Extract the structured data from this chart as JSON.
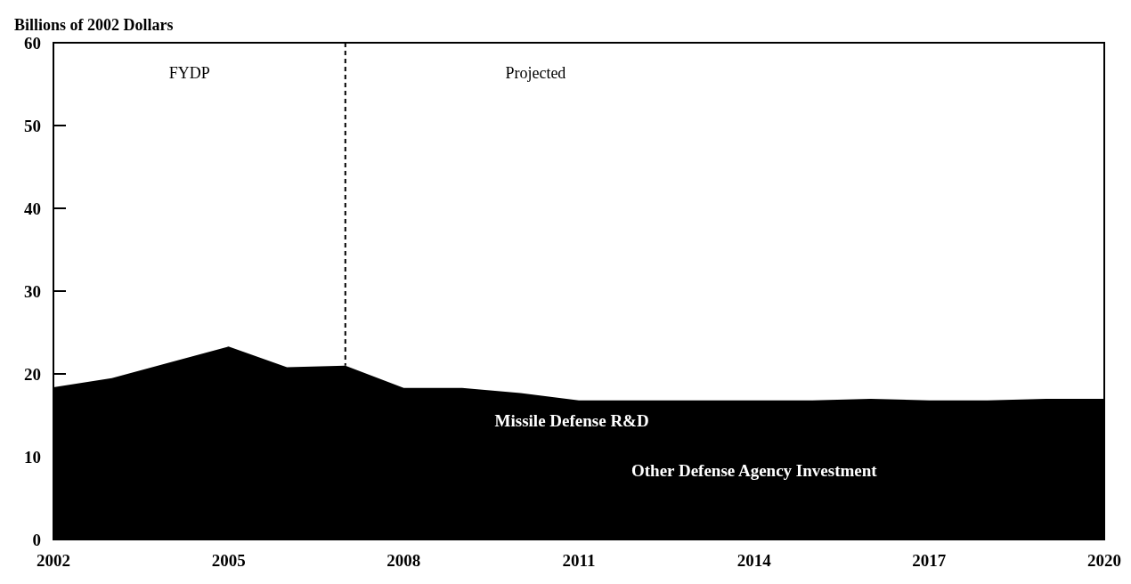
{
  "chart_data": {
    "type": "area",
    "ylabel": "Billions of 2002 Dollars",
    "x": [
      2002,
      2003,
      2004,
      2005,
      2006,
      2007,
      2008,
      2009,
      2010,
      2011,
      2012,
      2013,
      2014,
      2015,
      2016,
      2017,
      2018,
      2019,
      2020
    ],
    "series": [
      {
        "color": "#000000",
        "values": [
          18.4,
          19.5,
          21.4,
          23.3,
          20.8,
          21.0,
          18.3,
          18.3,
          17.7,
          16.8,
          16.8,
          16.8,
          16.8,
          16.8,
          17.0,
          16.8,
          16.8,
          17.0,
          17.0
        ]
      }
    ],
    "xlim": [
      2002,
      2020
    ],
    "xticks": [
      2002,
      2005,
      2008,
      2011,
      2014,
      2017,
      2020
    ],
    "ylim": [
      0,
      60
    ],
    "yticks": [
      0,
      10,
      20,
      30,
      40,
      50,
      60
    ],
    "ref_lines": [
      {
        "axis": "x",
        "value": 2007,
        "line_style": "dashed",
        "color": "#000000"
      }
    ],
    "annotations": [
      "FYDP",
      "Projected",
      "Missile Defense R&D",
      "Other Defense Agency Investment"
    ],
    "grid": false
  }
}
